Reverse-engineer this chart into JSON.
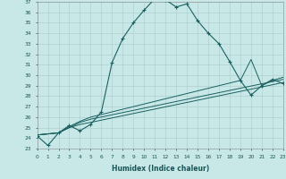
{
  "xlabel": "Humidex (Indice chaleur)",
  "bg_color": "#c8e8e8",
  "grid_color": "#b0d0d0",
  "line_color": "#1a6060",
  "xlim": [
    0,
    23
  ],
  "ylim": [
    23,
    37
  ],
  "xticks": [
    0,
    1,
    2,
    3,
    4,
    5,
    6,
    7,
    8,
    9,
    10,
    11,
    12,
    13,
    14,
    15,
    16,
    17,
    18,
    19,
    20,
    21,
    22,
    23
  ],
  "yticks": [
    23,
    24,
    25,
    26,
    27,
    28,
    29,
    30,
    31,
    32,
    33,
    34,
    35,
    36,
    37
  ],
  "series_main": {
    "x": [
      0,
      1,
      2,
      3,
      4,
      5,
      6,
      7,
      8,
      9,
      10,
      11,
      12,
      13,
      14,
      15,
      16,
      17,
      18,
      19,
      20,
      21,
      22,
      23
    ],
    "y": [
      24.2,
      23.3,
      24.5,
      25.2,
      24.7,
      25.3,
      26.5,
      31.2,
      33.5,
      35.0,
      36.2,
      37.3,
      37.2,
      36.5,
      36.8,
      35.2,
      34.0,
      33.0,
      31.3,
      29.5,
      28.1,
      29.0,
      29.6,
      29.2
    ]
  },
  "series_flat": [
    {
      "x": [
        0,
        2,
        3,
        4,
        5,
        23
      ],
      "y": [
        24.3,
        24.5,
        25.0,
        25.3,
        25.5,
        29.3
      ]
    },
    {
      "x": [
        0,
        2,
        3,
        4,
        5,
        23
      ],
      "y": [
        24.3,
        24.5,
        25.0,
        25.5,
        25.8,
        29.6
      ]
    },
    {
      "x": [
        0,
        2,
        3,
        4,
        5,
        19,
        20,
        21,
        22,
        23
      ],
      "y": [
        24.3,
        24.5,
        25.1,
        25.6,
        26.0,
        29.5,
        31.5,
        29.0,
        29.5,
        29.8
      ]
    }
  ]
}
